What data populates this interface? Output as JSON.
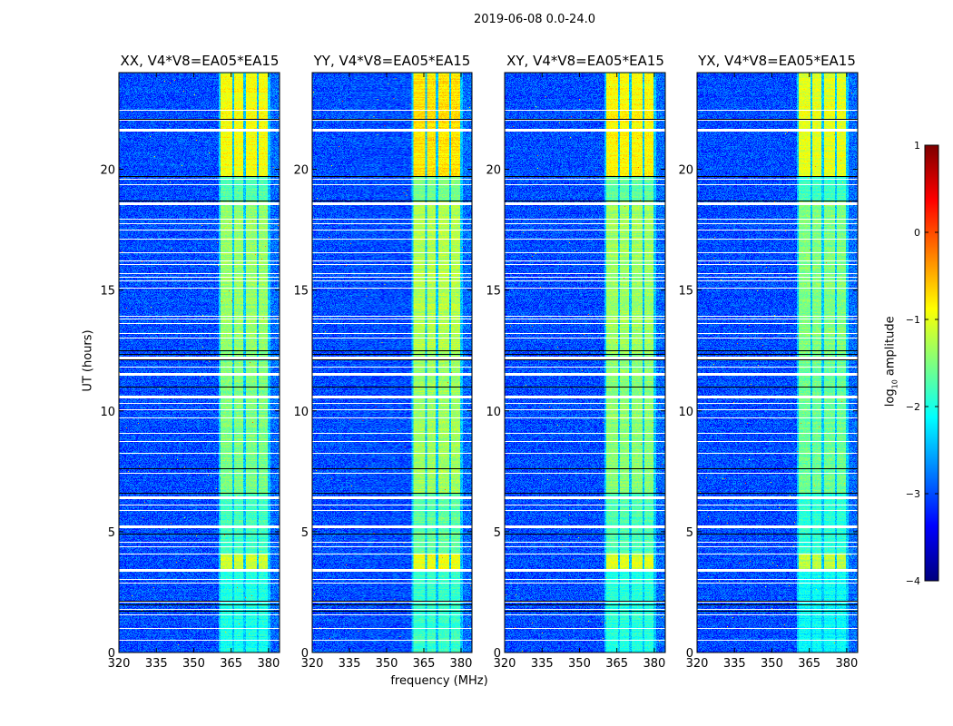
{
  "figure": {
    "suptitle": "2019-06-08 0.0-24.0",
    "xlabel": "frequency (MHz)",
    "ylabel": "UT (hours)",
    "colorbar_label_main": "log",
    "colorbar_label_sub": "10",
    "colorbar_label_rest": " amplitude"
  },
  "chart_data": {
    "type": "heatmap",
    "panels": [
      {
        "title": "XX, V4*V8=EA05*EA15",
        "band_boost": 0.0
      },
      {
        "title": "YY, V4*V8=EA05*EA15",
        "band_boost": 0.15
      },
      {
        "title": "XY, V4*V8=EA05*EA15",
        "band_boost": 0.05
      },
      {
        "title": "YX, V4*V8=EA05*EA15",
        "band_boost": -0.1
      }
    ],
    "xlim": [
      320,
      384.4
    ],
    "ylim": [
      0,
      24
    ],
    "xticks": [
      "320",
      "335",
      "350",
      "365",
      "380"
    ],
    "xtick_values": [
      320,
      335,
      350,
      365,
      380
    ],
    "yticks": [
      "0",
      "5",
      "10",
      "15",
      "20"
    ],
    "ytick_values": [
      0,
      5,
      10,
      15,
      20
    ],
    "colorbar": {
      "colormap": "jet",
      "range": [
        -4,
        1
      ],
      "ticks": [
        "−4",
        "−3",
        "−2",
        "−1",
        "0",
        "1"
      ],
      "tick_values": [
        -4,
        -3,
        -2,
        -1,
        0,
        1
      ]
    },
    "background_level": -3.0,
    "bright_subbands_mhz": [
      [
        360.7,
        365.5
      ],
      [
        366.2,
        369.8
      ],
      [
        370.9,
        375.3
      ],
      [
        376.0,
        380.0
      ]
    ],
    "band_level_by_ut": [
      {
        "ut": [
          0.0,
          3.4
        ],
        "level": -2.0
      },
      {
        "ut": [
          3.4,
          4.1
        ],
        "level": -1.1
      },
      {
        "ut": [
          4.1,
          6.6
        ],
        "level": -1.8
      },
      {
        "ut": [
          6.6,
          10.0
        ],
        "level": -1.5
      },
      {
        "ut": [
          10.0,
          12.4
        ],
        "level": -1.5
      },
      {
        "ut": [
          12.4,
          18.7
        ],
        "level": -1.4
      },
      {
        "ut": [
          18.7,
          19.7
        ],
        "level": -1.7
      },
      {
        "ut": [
          19.7,
          24.0
        ],
        "level": -0.9
      }
    ],
    "flagged_ut_white": [
      22.46,
      22.05,
      21.67,
      19.6,
      19.38,
      18.63,
      17.95,
      17.77,
      17.5,
      17.13,
      16.56,
      16.22,
      16.07,
      15.7,
      15.55,
      15.4,
      15.1,
      13.93,
      13.8,
      13.63,
      13.2,
      13.03,
      12.24,
      11.8,
      11.53,
      10.6,
      10.29,
      10.03,
      9.69,
      9.05,
      8.71,
      8.22,
      7.4,
      6.42,
      6.08,
      5.86,
      5.22,
      4.54,
      4.36,
      4.06,
      3.42,
      3.0,
      2.85,
      2.07,
      1.77,
      1.54,
      0.98,
      0.49
    ],
    "flagged_ut_thick": [
      21.67,
      18.63,
      12.24,
      11.53,
      10.6,
      6.42,
      5.22,
      3.42
    ],
    "zero_ut_black": [
      22.1,
      19.7,
      18.7,
      12.5,
      12.35,
      12.1,
      11.0,
      7.6,
      6.6,
      4.9,
      2.1,
      1.95,
      1.7
    ]
  }
}
